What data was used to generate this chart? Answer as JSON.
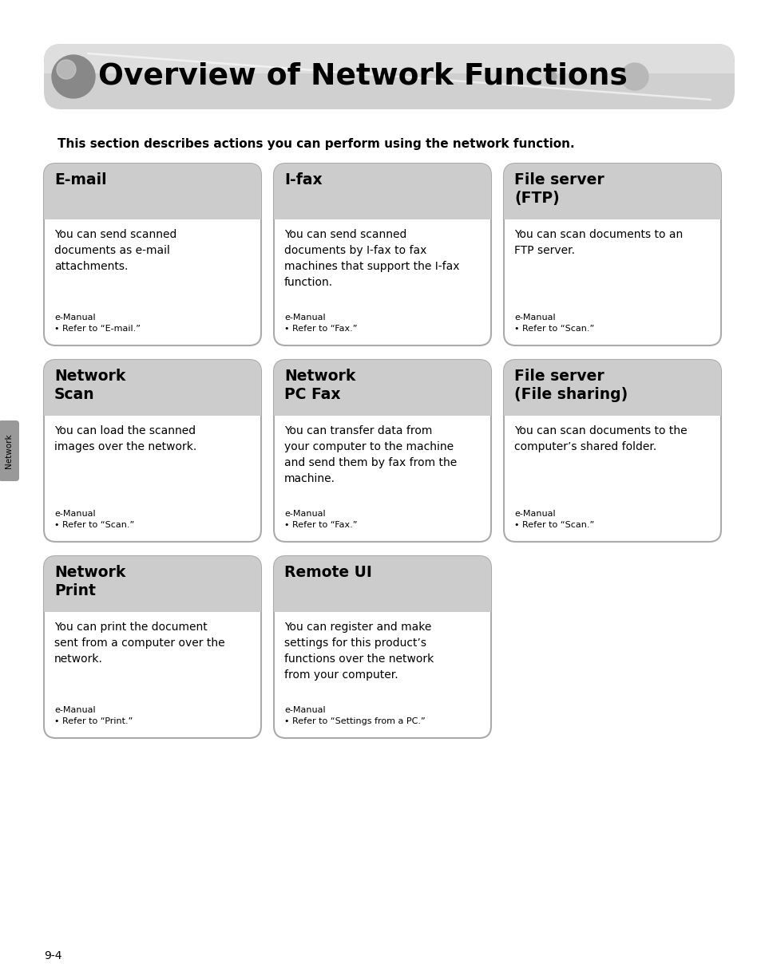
{
  "title": "Overview of Network Functions",
  "subtitle": "This section describes actions you can perform using the network function.",
  "background_color": "#ffffff",
  "card_header_bg": "#cccccc",
  "card_border": "#aaaaaa",
  "page_number": "9-4",
  "side_label": "Network",
  "cards": [
    {
      "row": 0,
      "col": 0,
      "title": "E-mail",
      "body": "You can send scanned\ndocuments as e-mail\nattachments.",
      "footer": "e-Manual\n• Refer to “E-mail.”"
    },
    {
      "row": 0,
      "col": 1,
      "title": "I-fax",
      "body": "You can send scanned\ndocuments by I-fax to fax\nmachines that support the I-fax\nfunction.",
      "footer": "e-Manual\n• Refer to “Fax.”"
    },
    {
      "row": 0,
      "col": 2,
      "title": "File server\n(FTP)",
      "body": "You can scan documents to an\nFTP server.",
      "footer": "e-Manual\n• Refer to “Scan.”"
    },
    {
      "row": 1,
      "col": 0,
      "title": "Network\nScan",
      "body": "You can load the scanned\nimages over the network.",
      "footer": "e-Manual\n• Refer to “Scan.”"
    },
    {
      "row": 1,
      "col": 1,
      "title": "Network\nPC Fax",
      "body": "You can transfer data from\nyour computer to the machine\nand send them by fax from the\nmachine.",
      "footer": "e-Manual\n• Refer to “Fax.”"
    },
    {
      "row": 1,
      "col": 2,
      "title": "File server\n(File sharing)",
      "body": "You can scan documents to the\ncomputer’s shared folder.",
      "footer": "e-Manual\n• Refer to “Scan.”"
    },
    {
      "row": 2,
      "col": 0,
      "title": "Network\nPrint",
      "body": "You can print the document\nsent from a computer over the\nnetwork.",
      "footer": "e-Manual\n• Refer to “Print.”"
    },
    {
      "row": 2,
      "col": 1,
      "title": "Remote UI",
      "body": "You can register and make\nsettings for this product’s\nfunctions over the network\nfrom your computer.",
      "footer": "e-Manual\n• Refer to “Settings from a PC.”"
    }
  ],
  "fig_w": 9.54,
  "fig_h": 12.27,
  "dpi": 100
}
